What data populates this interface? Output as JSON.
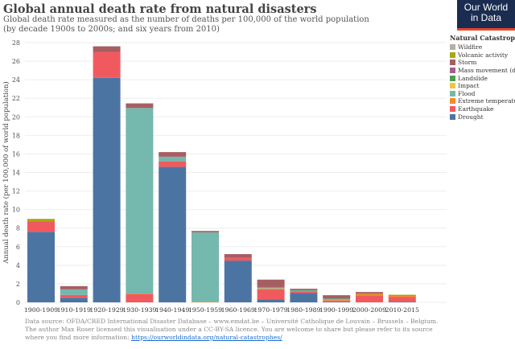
{
  "header": {
    "title": "Global annual death rate from natural disasters",
    "subtitle_line1": "Global death rate measured as the number of deaths per 100,000 of the world population",
    "subtitle_line2": "(by decade 1900s to 2000s; and six years from 2010)",
    "logo_line1": "Our World",
    "logo_line2": "in Data"
  },
  "footer": {
    "source": "Data source: OFDA/CRED International Disaster Database – www.emdat.be – Université Catholique de Louvain – Brussels – Belgium.",
    "license": "The author Max Roser licensed this visualisation under a CC-BY-SA licence. You are welcome to share but please refer to its source where you find more information:",
    "link": "https://ourworldindata.org/natural-catastrophes/"
  },
  "chart_data": {
    "type": "bar",
    "stacked": true,
    "title": "Global annual death rate from natural disasters",
    "ylabel": "Annual death rate (per 100,000 of world population)",
    "xlabel": "",
    "ylim": [
      0,
      28
    ],
    "yticks": [
      0,
      2,
      4,
      6,
      8,
      10,
      12,
      14,
      16,
      18,
      20,
      22,
      24,
      26,
      28
    ],
    "legend_title": "Natural Catastrophe",
    "legend_position": "right",
    "categories": [
      "1900-1909",
      "1910-1919",
      "1920-1929",
      "1930-1939",
      "1940-1949",
      "1950-1959",
      "1960-1969",
      "1970-1979",
      "1980-1989",
      "1990-1999",
      "2000-2009",
      "2010-2015"
    ],
    "series": [
      {
        "name": "Drought",
        "color": "#4c74a3",
        "values": [
          7.6,
          0.5,
          24.2,
          0,
          14.6,
          0,
          4.5,
          0.3,
          1.0,
          0.05,
          0,
          0.05
        ]
      },
      {
        "name": "Earthquake",
        "color": "#f05a5f",
        "values": [
          1.1,
          0.3,
          2.8,
          0.9,
          0.6,
          0,
          0.3,
          1.1,
          0.2,
          0.15,
          0.75,
          0.55
        ]
      },
      {
        "name": "Extreme temperature",
        "color": "#f28c28",
        "values": [
          0,
          0,
          0,
          0.05,
          0,
          0.05,
          0,
          0.1,
          0,
          0.05,
          0.2,
          0.15
        ]
      },
      {
        "name": "Flood",
        "color": "#74b8ae",
        "values": [
          0,
          0.6,
          0,
          20.0,
          0.5,
          7.5,
          0,
          0.1,
          0.1,
          0.15,
          0,
          0
        ]
      },
      {
        "name": "Impact",
        "color": "#f2c43e",
        "values": [
          0,
          0,
          0,
          0,
          0,
          0,
          0,
          0,
          0,
          0,
          0,
          0
        ]
      },
      {
        "name": "Landslide",
        "color": "#4f9e4f",
        "values": [
          0,
          0,
          0,
          0,
          0,
          0,
          0,
          0.05,
          0.02,
          0.02,
          0.02,
          0.02
        ]
      },
      {
        "name": "Mass movement (dry)",
        "color": "#a0628a",
        "values": [
          0.05,
          0,
          0,
          0,
          0,
          0,
          0,
          0,
          0,
          0,
          0,
          0
        ]
      },
      {
        "name": "Storm",
        "color": "#a65e62",
        "values": [
          0,
          0.35,
          0.6,
          0.5,
          0.5,
          0.15,
          0.4,
          0.8,
          0.15,
          0.35,
          0.15,
          0
        ]
      },
      {
        "name": "Volcanic activity",
        "color": "#a8a812",
        "values": [
          0.25,
          0,
          0,
          0,
          0,
          0,
          0,
          0,
          0,
          0,
          0,
          0.05
        ]
      },
      {
        "name": "Wildfire",
        "color": "#b8aea6",
        "values": [
          0,
          0,
          0,
          0,
          0,
          0,
          0,
          0,
          0,
          0,
          0,
          0
        ]
      }
    ]
  }
}
